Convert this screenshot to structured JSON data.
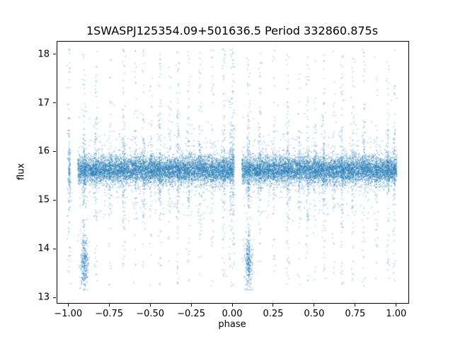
{
  "chart_data": {
    "type": "scatter",
    "title": "1SWASPJ125354.09+501636.5 Period 332860.875s",
    "xlabel": "phase",
    "ylabel": "flux",
    "xlim": [
      -1.07,
      1.07
    ],
    "ylim": [
      12.9,
      18.27
    ],
    "xticks": [
      {
        "v": -1.0,
        "label": "−1.00"
      },
      {
        "v": -0.75,
        "label": "−0.75"
      },
      {
        "v": -0.5,
        "label": "−0.50"
      },
      {
        "v": -0.25,
        "label": "−0.25"
      },
      {
        "v": 0.0,
        "label": "0.00"
      },
      {
        "v": 0.25,
        "label": "0.25"
      },
      {
        "v": 0.5,
        "label": "0.50"
      },
      {
        "v": 0.75,
        "label": "0.75"
      },
      {
        "v": 1.0,
        "label": "1.00"
      }
    ],
    "yticks": [
      {
        "v": 13,
        "label": "13"
      },
      {
        "v": 14,
        "label": "14"
      },
      {
        "v": 15,
        "label": "15"
      },
      {
        "v": 16,
        "label": "16"
      },
      {
        "v": 17,
        "label": "17"
      },
      {
        "v": 18,
        "label": "18"
      }
    ],
    "grid": false,
    "legend": null,
    "marker": {
      "color": "#1f77b4",
      "alpha": 0.45,
      "size": 1.4
    },
    "spine_color": "#000000",
    "background": "#ffffff",
    "generator": {
      "seed": 42,
      "note": "phase-folded light curve: each generated point at phase p in [0,1) is plotted at x=p and x=p-1",
      "band": {
        "n": 8000,
        "mean": 15.63,
        "sd": 0.14,
        "tail_prob": 0.06,
        "tail_sd": 0.5,
        "gap": [
          0.008,
          0.055
        ],
        "ymin": 13.1,
        "ymax": 18.15
      },
      "spike_y": {
        "uniform_frac": 0.45,
        "ymin": 13.25,
        "ymax": 18.12,
        "center_sd": 0.45
      },
      "spikes": [
        {
          "p": 0.002,
          "n": 150
        },
        {
          "p": 0.095,
          "n": 160
        },
        {
          "p": 0.165,
          "n": 110
        },
        {
          "p": 0.25,
          "n": 60
        },
        {
          "p": 0.335,
          "n": 130
        },
        {
          "p": 0.405,
          "n": 70
        },
        {
          "p": 0.455,
          "n": 110
        },
        {
          "p": 0.5,
          "n": 60
        },
        {
          "p": 0.555,
          "n": 120
        },
        {
          "p": 0.615,
          "n": 60
        },
        {
          "p": 0.665,
          "n": 130
        },
        {
          "p": 0.73,
          "n": 90
        },
        {
          "p": 0.8,
          "n": 100
        },
        {
          "p": 0.875,
          "n": 60
        },
        {
          "p": 0.945,
          "n": 110
        },
        {
          "p": 0.985,
          "n": 90
        }
      ],
      "dip": {
        "p": 0.095,
        "n": 300,
        "x_sd": 0.012,
        "mean": 13.75,
        "sd": 0.28,
        "ymin": 13.17,
        "ymax": 14.6
      }
    }
  }
}
